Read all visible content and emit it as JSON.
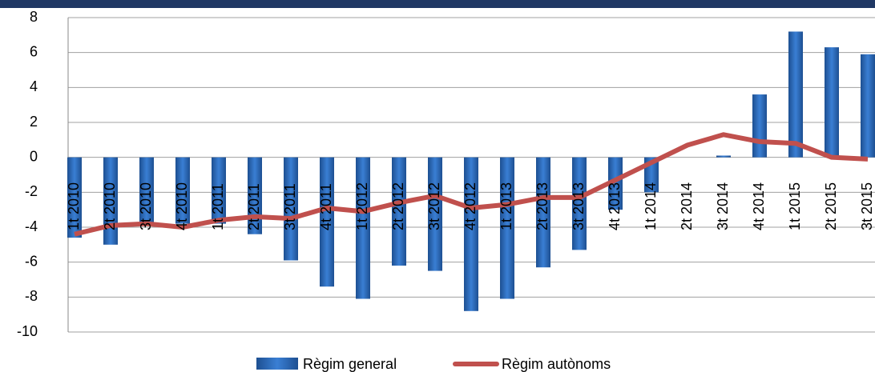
{
  "chart_data": {
    "type": "bar_line",
    "categories": [
      "1t 2010",
      "2t 2010",
      "3t 2010",
      "4t 2010",
      "1t 2011",
      "2t 2011",
      "3t 2011",
      "4t 2011",
      "1t 2012",
      "2t 2012",
      "3t 2012",
      "4t 2012",
      "1t 2013",
      "2t 2013",
      "3t 2013",
      "4t 2013",
      "1t 2014",
      "2t 2014",
      "3t 2014",
      "4t 2014",
      "1t 2015",
      "2t 2015",
      "3t 2015"
    ],
    "series": [
      {
        "name": "Règim general",
        "color": "#2f6fc0",
        "type": "bar",
        "values": [
          -4.6,
          -5.0,
          -3.9,
          -3.8,
          -3.8,
          -4.4,
          -5.9,
          -7.4,
          -8.1,
          -6.2,
          -6.5,
          -8.8,
          -8.1,
          -6.3,
          -5.3,
          -3.0,
          -2.0,
          0,
          0.1,
          3.6,
          7.2,
          6.3,
          5.9
        ]
      },
      {
        "name": "Règim autònoms",
        "color": "#c0504d",
        "type": "line",
        "values": [
          -4.4,
          -3.9,
          -3.8,
          -4.0,
          -3.6,
          -3.4,
          -3.5,
          -2.9,
          -3.1,
          -2.6,
          -2.2,
          -2.9,
          -2.7,
          -2.3,
          -2.3,
          -1.3,
          -0.3,
          0.7,
          1.3,
          0.9,
          0.8,
          0.0,
          -0.1
        ]
      }
    ],
    "ylim": [
      -10,
      8
    ],
    "yticks": [
      -10,
      -8,
      -6,
      -4,
      -2,
      0,
      2,
      4,
      6,
      8
    ],
    "grid": true,
    "legend": "bottom"
  }
}
